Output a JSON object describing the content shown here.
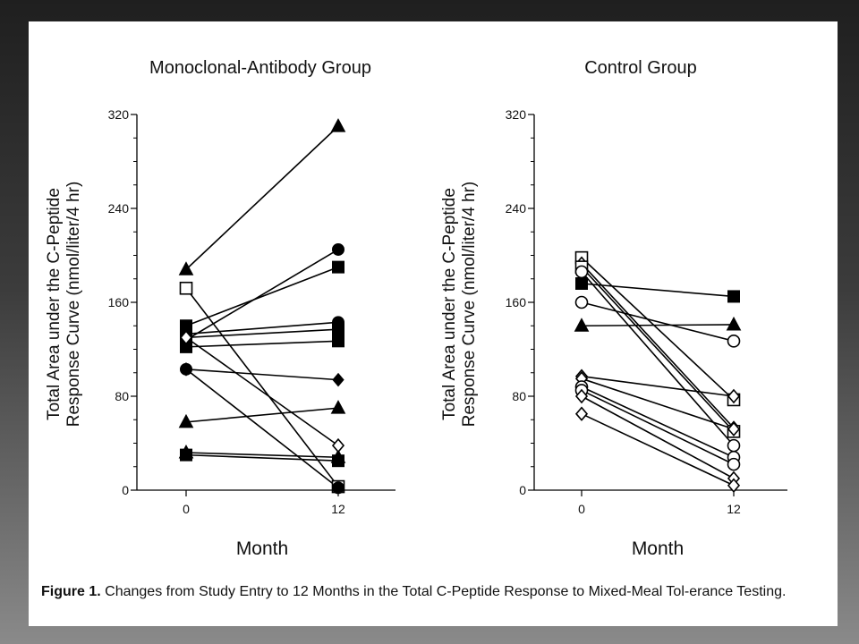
{
  "caption": {
    "lead": "Figure 1.",
    "text": "Changes from Study Entry to 12 Months in the Total C-Peptide Response to Mixed-Meal Tol-erance Testing."
  },
  "chart_data": [
    {
      "type": "line",
      "title": "Monoclonal-Antibody Group",
      "xlabel": "Month",
      "ylabel": [
        "Total Area under the C-Peptide",
        "Response Curve (nmol/liter/4 hr)"
      ],
      "x_categories": [
        "0",
        "12"
      ],
      "ylim": [
        0,
        320
      ],
      "yticks": [
        0,
        80,
        160,
        240,
        320
      ],
      "series": [
        {
          "marker": "triangle-filled",
          "values": [
            188,
            310
          ]
        },
        {
          "marker": "circle-filled",
          "values": [
            128,
            205
          ]
        },
        {
          "marker": "square-filled",
          "values": [
            140,
            190
          ]
        },
        {
          "marker": "circle-filled",
          "values": [
            133,
            143
          ]
        },
        {
          "marker": "square-filled",
          "values": [
            130,
            137
          ]
        },
        {
          "marker": "square-filled",
          "values": [
            122,
            127
          ]
        },
        {
          "marker": "diamond-filled",
          "values": [
            103,
            94
          ]
        },
        {
          "marker": "triangle-filled",
          "values": [
            58,
            70
          ]
        },
        {
          "marker": "triangle-filled",
          "values": [
            32,
            28
          ]
        },
        {
          "marker": "square-filled",
          "values": [
            30,
            25
          ]
        },
        {
          "marker": "square-open",
          "values": [
            172,
            3
          ]
        },
        {
          "marker": "diamond-open",
          "values": [
            130,
            38
          ]
        },
        {
          "marker": "circle-filled",
          "values": [
            103,
            2
          ]
        }
      ]
    },
    {
      "type": "line",
      "title": "Control Group",
      "xlabel": "Month",
      "ylabel": [
        "Total Area under the C-Peptide",
        "Response Curve (nmol/liter/4 hr)"
      ],
      "x_categories": [
        "0",
        "12"
      ],
      "ylim": [
        0,
        320
      ],
      "yticks": [
        0,
        80,
        160,
        240,
        320
      ],
      "series": [
        {
          "marker": "square-filled",
          "values": [
            176,
            165
          ]
        },
        {
          "marker": "triangle-filled",
          "values": [
            140,
            141
          ]
        },
        {
          "marker": "circle-open",
          "values": [
            160,
            127
          ]
        },
        {
          "marker": "square-open",
          "values": [
            198,
            77
          ]
        },
        {
          "marker": "diamond-open",
          "values": [
            193,
            53
          ]
        },
        {
          "marker": "square-open",
          "values": [
            190,
            50
          ]
        },
        {
          "marker": "circle-open",
          "values": [
            186,
            38
          ]
        },
        {
          "marker": "diamond-open",
          "values": [
            97,
            80
          ]
        },
        {
          "marker": "diamond-open",
          "values": [
            95,
            52
          ]
        },
        {
          "marker": "circle-open",
          "values": [
            88,
            28
          ]
        },
        {
          "marker": "circle-open",
          "values": [
            85,
            22
          ]
        },
        {
          "marker": "diamond-open",
          "values": [
            80,
            10
          ]
        },
        {
          "marker": "diamond-open",
          "values": [
            65,
            4
          ]
        }
      ]
    }
  ]
}
